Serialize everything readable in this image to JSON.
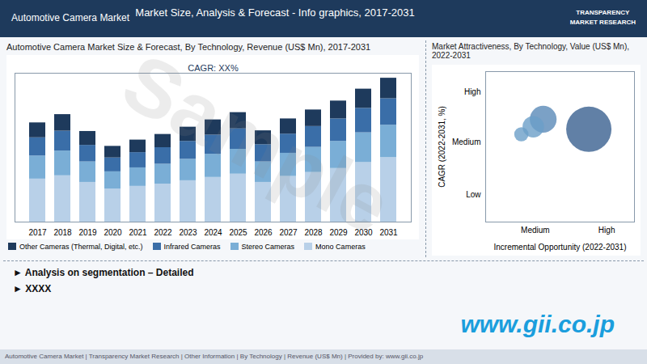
{
  "header": [
    "Automotive Camera Market",
    "Market Size, Analysis & Forecast - Info graphics, 2017-2031"
  ],
  "logo": [
    "TRANSPARENCY",
    "MARKET RESEARCH"
  ],
  "chart_data": [
    {
      "type": "bar",
      "title": "Automotive Camera Market Size & Forecast, By Technology, Revenue (US$ Mn), 2017-2031",
      "stacked": true,
      "categories": [
        "2017",
        "2018",
        "2019",
        "2020",
        "2021",
        "2022",
        "2023",
        "2024",
        "2025",
        "2026",
        "2027",
        "2028",
        "2029",
        "2030",
        "2031"
      ],
      "series": [
        {
          "name": "Mono Cameras",
          "color": "#b8d0e8",
          "values": [
            1.3,
            1.4,
            1.2,
            1.0,
            1.08,
            1.15,
            1.25,
            1.35,
            1.45,
            1.2,
            1.38,
            1.5,
            1.62,
            1.8,
            1.95
          ]
        },
        {
          "name": "Stereo Cameras",
          "color": "#7aaed6",
          "values": [
            0.7,
            0.75,
            0.62,
            0.52,
            0.56,
            0.6,
            0.65,
            0.7,
            0.75,
            0.62,
            0.7,
            0.76,
            0.82,
            0.9,
            0.98
          ]
        },
        {
          "name": "Infrared Cameras",
          "color": "#3a6ea8",
          "values": [
            0.55,
            0.6,
            0.5,
            0.42,
            0.46,
            0.5,
            0.54,
            0.58,
            0.62,
            0.52,
            0.58,
            0.63,
            0.68,
            0.74,
            0.8
          ]
        },
        {
          "name": "Other Cameras (Thermal, Digital, etc.)",
          "color": "#1e3a5c",
          "values": [
            0.45,
            0.5,
            0.42,
            0.35,
            0.38,
            0.4,
            0.43,
            0.46,
            0.49,
            0.42,
            0.46,
            0.5,
            0.54,
            0.58,
            0.62
          ]
        }
      ],
      "ylim": [
        0,
        4.5
      ],
      "yticks": [],
      "tick_labels": "x",
      "grid": false,
      "legend": "bottom",
      "annotation": "CAGR: XX%"
    },
    {
      "type": "scatter",
      "title": "Market Attractiveness, By Technology, Value (US$ Mn), 2022-2031",
      "x": [
        1.8,
        2.4,
        2.9,
        5.2
      ],
      "values": [
        3.5,
        3.8,
        4.1,
        3.7
      ],
      "sizes": [
        200,
        450,
        700,
        2000
      ],
      "colors": [
        "#6b9fc8",
        "#6b9fc8",
        "#5a8ab8",
        "#3a6090"
      ],
      "xlim": [
        0,
        7.5
      ],
      "ylim": [
        0,
        6.0
      ],
      "xticks": [
        {
          "value": 2.5,
          "label": "Medium"
        },
        {
          "value": 6.1,
          "label": "High"
        }
      ],
      "yticks": [
        {
          "value": 1.1,
          "label": "Low"
        },
        {
          "value": 3.2,
          "label": "Medium"
        },
        {
          "value": 5.2,
          "label": "High"
        }
      ],
      "x_label": "Incremental Opportunity (2022-2031)",
      "y_label": "CAGR (2022-2031, %)",
      "grid": false
    }
  ],
  "footer": [
    "►  Analysis on segmentation – Detailed",
    "►  XXXX"
  ],
  "link": "www.gii.co.jp",
  "note": "Automotive Camera Market  |  Transparency Market Research  |  Other Information  |  By Technology  |  Revenue (US$ Mn)  |  Provided by: www.gii.co.jp",
  "watermark": "Sample"
}
